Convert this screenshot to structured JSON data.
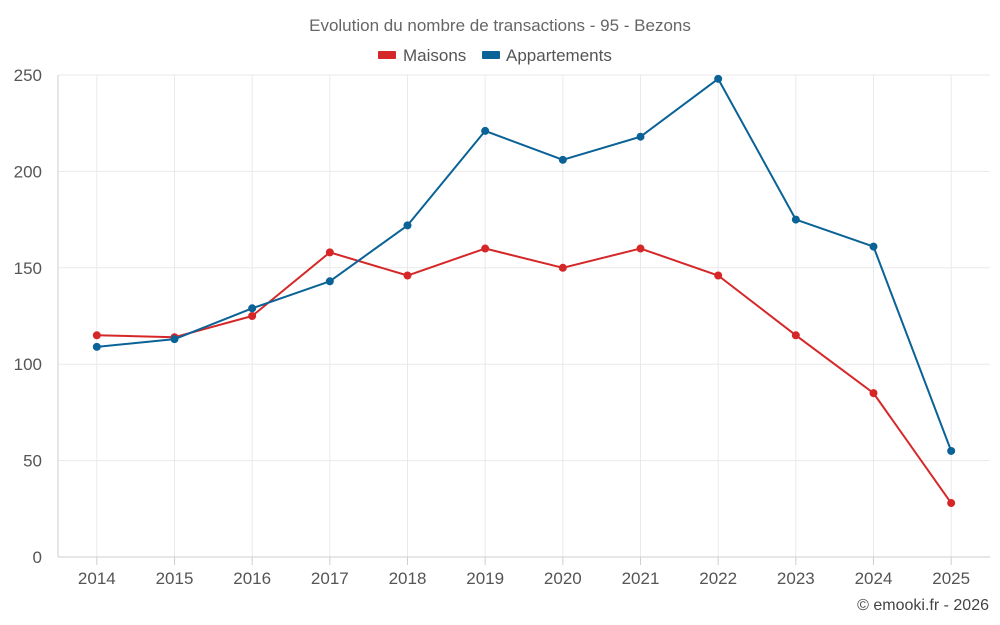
{
  "chart_data": {
    "type": "line",
    "title": "Evolution du nombre de transactions - 95 - Bezons",
    "xlabel": "",
    "ylabel": "",
    "categories": [
      "2014",
      "2015",
      "2016",
      "2017",
      "2018",
      "2019",
      "2020",
      "2021",
      "2022",
      "2023",
      "2024",
      "2025"
    ],
    "series": [
      {
        "name": "Maisons",
        "color": "#d62728",
        "values": [
          115,
          114,
          125,
          158,
          146,
          160,
          150,
          160,
          146,
          115,
          85,
          28
        ]
      },
      {
        "name": "Appartements",
        "color": "#0a6296",
        "values": [
          109,
          113,
          129,
          143,
          172,
          221,
          206,
          218,
          248,
          175,
          161,
          55
        ]
      }
    ],
    "ylim": [
      0,
      250
    ],
    "yticks": [
      0,
      50,
      100,
      150,
      200,
      250
    ],
    "grid": true,
    "legend_position": "top-center"
  },
  "credit": "© emooki.fr - 2026"
}
